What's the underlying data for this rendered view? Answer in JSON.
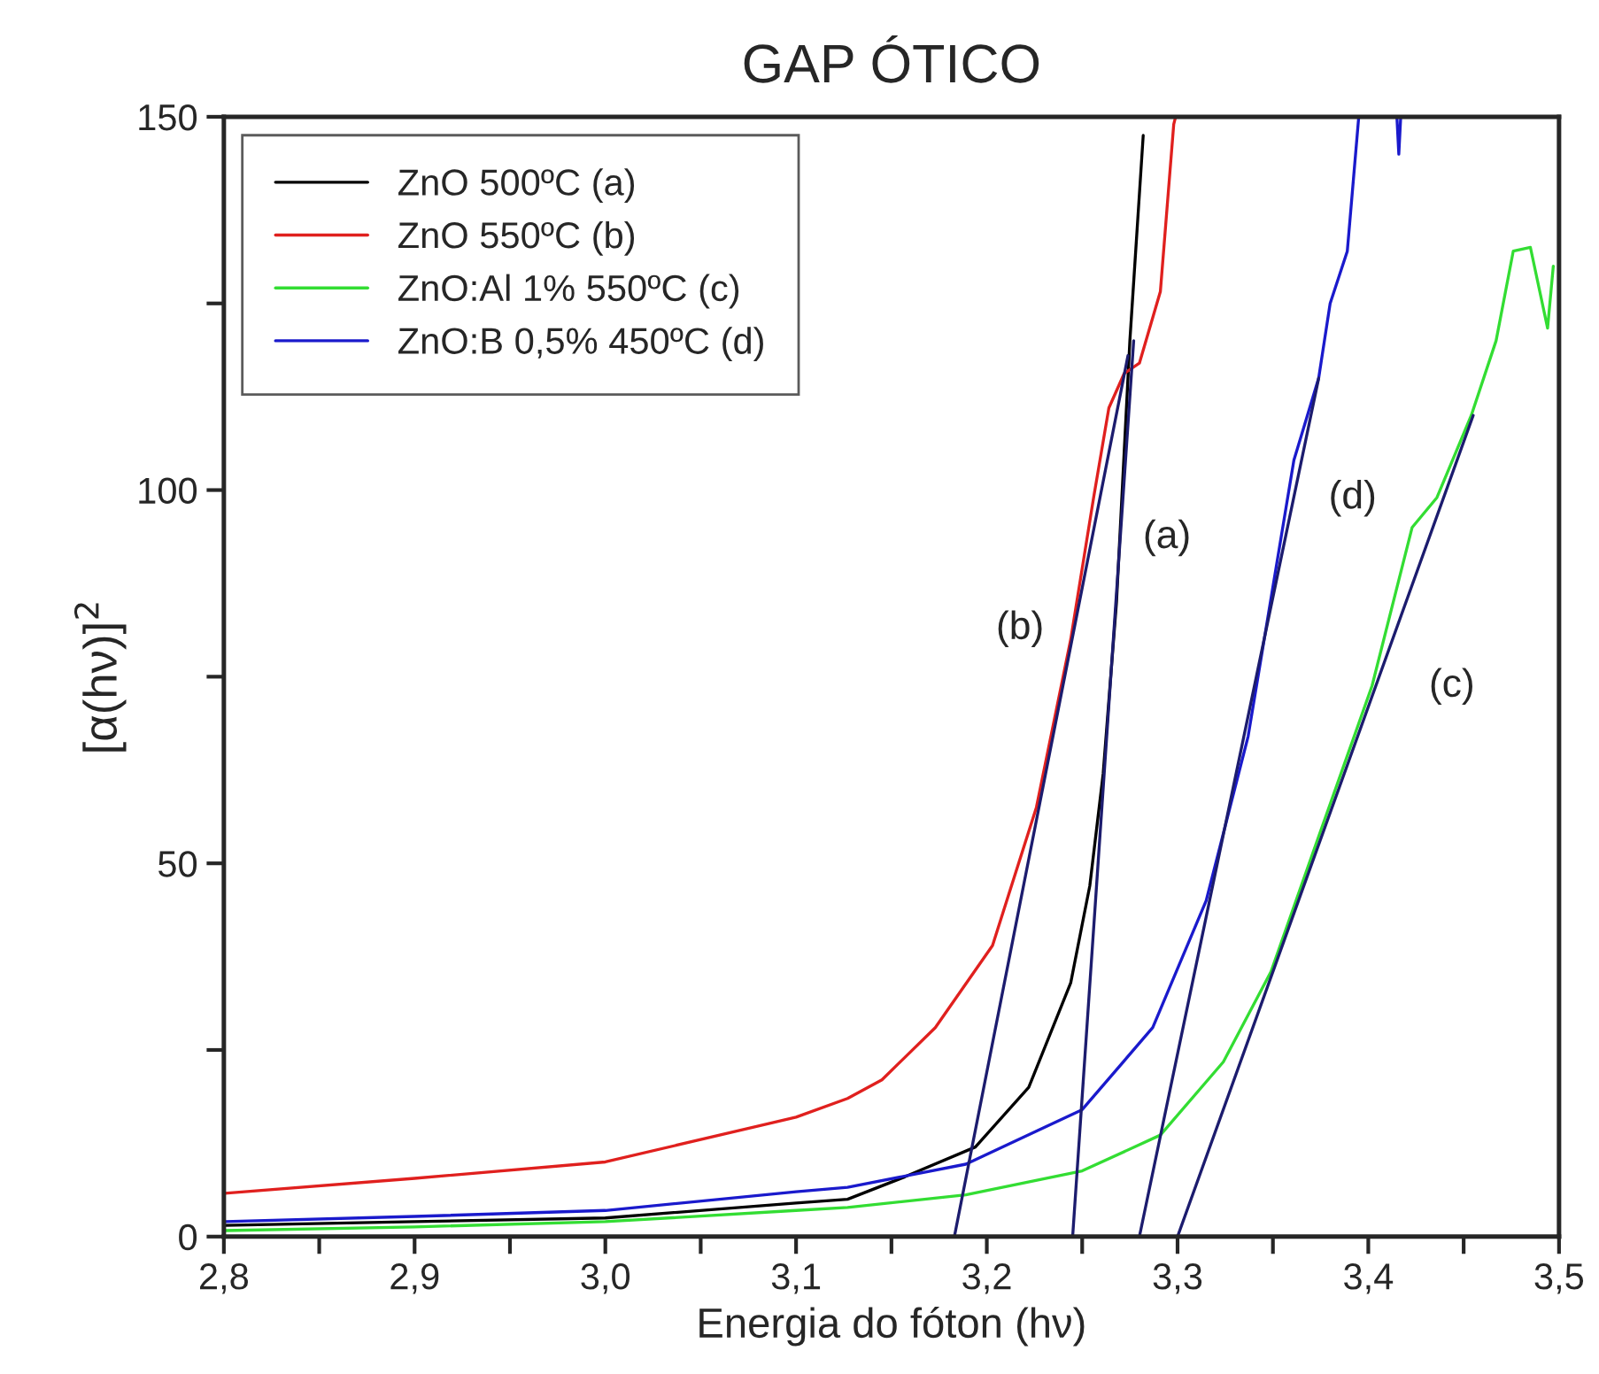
{
  "chart_data": {
    "type": "line",
    "title": "GAP ÓTICO",
    "xlabel": "Energia do fóton (hν)",
    "ylabel": "[α(hν)]$^{2}$",
    "xlim": [
      2.8,
      3.5
    ],
    "ylim": [
      0,
      150
    ],
    "xticks": [
      {
        "value": 2.8,
        "label": "2,8"
      },
      {
        "value": 2.85,
        "label": null
      },
      {
        "value": 2.9,
        "label": "2,9"
      },
      {
        "value": 2.95,
        "label": null
      },
      {
        "value": 3.0,
        "label": "3,0"
      },
      {
        "value": 3.05,
        "label": null
      },
      {
        "value": 3.1,
        "label": "3,1"
      },
      {
        "value": 3.15,
        "label": null
      },
      {
        "value": 3.2,
        "label": "3,2"
      },
      {
        "value": 3.25,
        "label": null
      },
      {
        "value": 3.3,
        "label": "3,3"
      },
      {
        "value": 3.35,
        "label": null
      },
      {
        "value": 3.4,
        "label": "3,4"
      },
      {
        "value": 3.45,
        "label": null
      },
      {
        "value": 3.5,
        "label": "3,5"
      }
    ],
    "yticks": [
      0,
      {
        "value": 25,
        "label": null
      },
      50,
      {
        "value": 75,
        "label": null
      },
      100,
      {
        "value": 125,
        "label": null
      },
      150
    ],
    "grid": false,
    "legend": "top left",
    "series": [
      {
        "name": "ZnO 500ºC (a)",
        "color": "#000000",
        "x": [
          2.8,
          2.9,
          3.0,
          3.1,
          3.127,
          3.157,
          3.194,
          3.222,
          3.244,
          3.254,
          3.261,
          3.268,
          3.275,
          3.282
        ],
        "values": [
          1.5,
          2,
          2.5,
          4.5,
          5,
          8,
          12,
          20,
          34,
          47,
          62,
          85,
          120,
          147.5
        ]
      },
      {
        "name": "ZnO 550ºC (b)",
        "color": "#e0201e",
        "x": [
          2.8,
          2.9,
          3.0,
          3.1,
          3.127,
          3.145,
          3.173,
          3.203,
          3.226,
          3.244,
          3.256,
          3.264,
          3.272,
          3.28,
          3.291,
          3.298,
          3.299
        ],
        "values": [
          5.8,
          7.8,
          10,
          16,
          18.5,
          21,
          28,
          39,
          57.5,
          80,
          99,
          111,
          115.6,
          117,
          126.6,
          149,
          150
        ]
      },
      {
        "name": "ZnO:Al 1% 550ºC (c)",
        "color": "#33dd33",
        "x": [
          2.8,
          2.9,
          3.0,
          3.1,
          3.127,
          3.189,
          3.25,
          3.291,
          3.324,
          3.349,
          3.374,
          3.402,
          3.423,
          3.436,
          3.454,
          3.467,
          3.476,
          3.485,
          3.494,
          3.497
        ],
        "values": [
          0.8,
          1.3,
          2,
          3.5,
          3.9,
          5.6,
          8.8,
          13.6,
          23.4,
          35.5,
          53.6,
          73.8,
          95,
          99,
          110,
          120,
          132,
          132.5,
          121.7,
          130
        ]
      },
      {
        "name": "ZnO:B 0,5% 450ºC (d)",
        "color": "#1a1acc",
        "x": [
          2.8,
          2.9,
          3.0,
          3.1,
          3.127,
          3.189,
          3.25,
          3.287,
          3.315,
          3.337,
          3.361,
          3.374,
          3.38,
          3.389,
          3.395,
          3.405,
          3.415,
          3.416,
          3.417
        ],
        "values": [
          2,
          2.7,
          3.5,
          6,
          6.6,
          9.7,
          17,
          28,
          45,
          67,
          104,
          115,
          125,
          132,
          150,
          null,
          150,
          145,
          150
        ]
      },
      {
        "type": "line",
        "color": "#1c1c6e",
        "x": [
          3.245,
          3.277
        ],
        "values": [
          0,
          120
        ]
      },
      {
        "type": "line",
        "color": "#1c1c6e",
        "x": [
          3.183,
          3.274
        ],
        "values": [
          0,
          118
        ]
      },
      {
        "type": "line",
        "color": "#1c1c6e",
        "x": [
          3.3,
          3.455
        ],
        "values": [
          0,
          110
        ]
      },
      {
        "type": "line",
        "color": "#1c1c6e",
        "x": [
          3.28,
          3.374
        ],
        "values": [
          0,
          115
        ]
      }
    ],
    "annotations": [
      "(a)",
      "(b)",
      "(c)",
      "(d)"
    ]
  }
}
